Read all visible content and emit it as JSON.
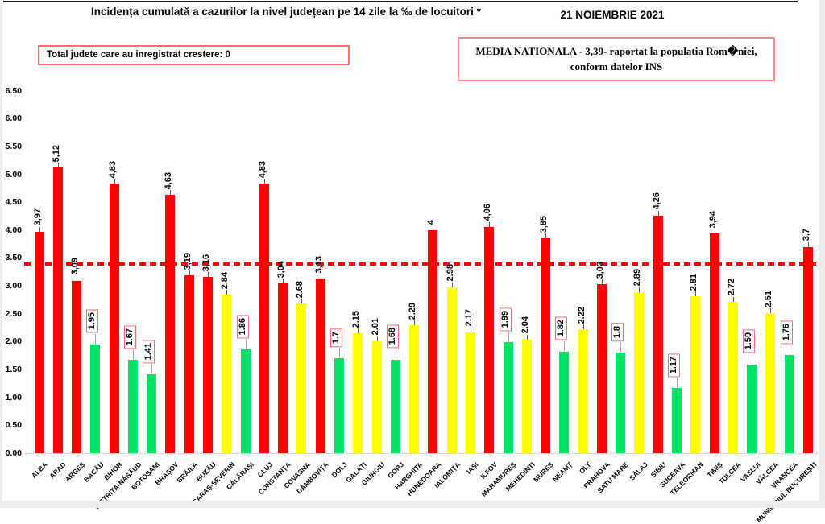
{
  "header": {
    "title": "Incidența cumulată a cazurilor la nivel județean pe 14 zile la ‰ de locuitori *",
    "date": "21 NOIEMBRIE 2021"
  },
  "note_box": {
    "text": "Total judete care au inregistrat crestere: 0"
  },
  "media_box": {
    "line1": "MEDIA NATIONALA - 3,39-  raportat la populatia  Rom�niei,",
    "line2": "conform datelor INS"
  },
  "colors": {
    "red": "#ff0000",
    "yellow": "#ffff00",
    "green": "#00e266",
    "reference_line": "#ff0000",
    "label_box_border": "#f96d6d",
    "leader_plain": "#595959",
    "leader_boxed": "#a6a6a6"
  },
  "chart_data": {
    "type": "bar",
    "title": "Incidența cumulată a cazurilor la nivel județean pe 14 zile la ‰ de locuitori *",
    "xlabel": "",
    "ylabel": "",
    "ylim": [
      0,
      6.5
    ],
    "ytick_step": 0.5,
    "ytick_labels": [
      "0.00",
      "0.50",
      "1.00",
      "1.50",
      "2.00",
      "2.50",
      "3.00",
      "3.50",
      "4.00",
      "4.50",
      "5.00",
      "5.50",
      "6.00",
      "6.50"
    ],
    "grid": "off",
    "legend": "none",
    "reference_line": {
      "label": "MEDIA NATIONALA",
      "value": 3.39,
      "style": "dashed",
      "color": "#ff0000"
    },
    "categories": [
      "ALBA",
      "ARAD",
      "ARGEȘ",
      "BACĂU",
      "BIHOR",
      "BISTRIȚA-NĂSĂUD",
      "BOTOȘANI",
      "BRAȘOV",
      "BRĂILA",
      "BUZĂU",
      "CARAȘ-SEVERIN",
      "CĂLĂRAȘI",
      "CLUJ",
      "CONSTANȚA",
      "COVASNA",
      "DÂMBOVIȚA",
      "DOLJ",
      "GALAȚI",
      "GIURGIU",
      "GORJ",
      "HARGHITA",
      "HUNEDOARA",
      "IALOMIȚA",
      "IAȘI",
      "ILFOV",
      "MARAMUREȘ",
      "MEHEDINȚI",
      "MUREȘ",
      "NEAMȚ",
      "OLT",
      "PRAHOVA",
      "SATU MARE",
      "SĂLAJ",
      "SIBIU",
      "SUCEAVA",
      "TELEORMAN",
      "TIMIȘ",
      "TULCEA",
      "VASLUI",
      "VÂLCEA",
      "VRANCEA",
      "MUNICIPIUL BUCUREȘTI"
    ],
    "values": [
      3.97,
      5.12,
      3.09,
      1.95,
      4.83,
      1.67,
      1.41,
      4.63,
      3.19,
      3.16,
      2.84,
      1.86,
      4.83,
      3.04,
      2.68,
      3.13,
      1.7,
      2.15,
      2.01,
      1.68,
      2.29,
      4,
      2.98,
      2.17,
      4.06,
      1.99,
      2.04,
      3.85,
      1.82,
      2.22,
      3.03,
      1.8,
      2.89,
      4.26,
      1.17,
      2.81,
      3.94,
      2.72,
      1.59,
      2.51,
      1.76,
      3.7
    ],
    "display_values": [
      "3,97",
      "5,12",
      "3,09",
      "1.95",
      "4,83",
      "1.67",
      "1.41",
      "4,63",
      "3,19",
      "3,16",
      "2.84",
      "1.86",
      "4,83",
      "3,04",
      "2.68",
      "3,13",
      "1.7",
      "2.15",
      "2.01",
      "1.68",
      "2.29",
      "4",
      "2.98",
      "2.17",
      "4,06",
      "1.99",
      "2.04",
      "3,85",
      "1.82",
      "2.22",
      "3,03",
      "1.8",
      "2.89",
      "4,26",
      "1.17",
      "2.81",
      "3,94",
      "2.72",
      "1.59",
      "2.51",
      "1.76",
      "3,7"
    ],
    "bar_colors": [
      "red",
      "red",
      "red",
      "green",
      "red",
      "green",
      "green",
      "red",
      "red",
      "red",
      "yellow",
      "green",
      "red",
      "red",
      "yellow",
      "red",
      "green",
      "yellow",
      "yellow",
      "green",
      "yellow",
      "red",
      "yellow",
      "yellow",
      "red",
      "green",
      "yellow",
      "red",
      "green",
      "yellow",
      "red",
      "green",
      "yellow",
      "red",
      "green",
      "yellow",
      "red",
      "yellow",
      "green",
      "yellow",
      "green",
      "red"
    ],
    "boxed_labels": [
      false,
      false,
      false,
      true,
      false,
      true,
      true,
      false,
      false,
      false,
      false,
      true,
      false,
      false,
      false,
      false,
      true,
      false,
      false,
      true,
      false,
      false,
      false,
      false,
      false,
      true,
      false,
      false,
      true,
      false,
      false,
      true,
      false,
      false,
      true,
      false,
      false,
      false,
      true,
      false,
      true,
      false
    ]
  }
}
